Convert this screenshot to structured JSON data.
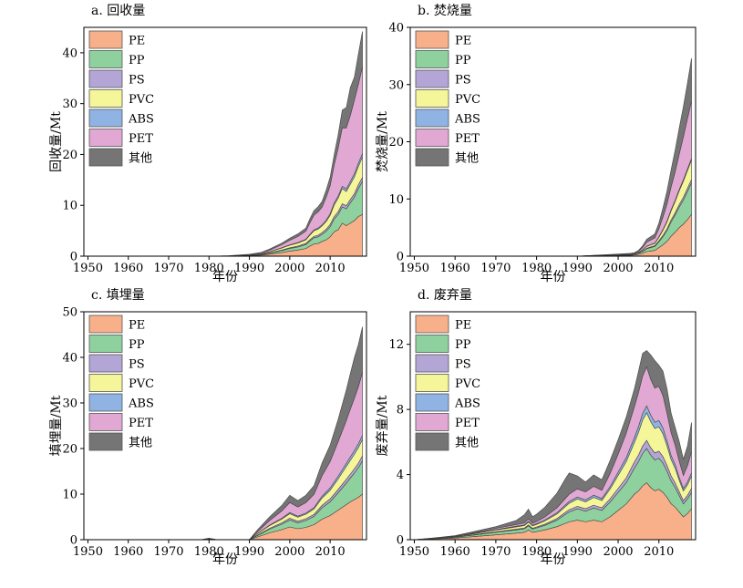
{
  "chart_data": [
    {
      "type": "area",
      "title": "a. 回收量",
      "xlabel": "年份",
      "ylabel": "回收量/Mt",
      "xlim": [
        1949,
        2019
      ],
      "ylim": [
        0,
        45
      ],
      "xticks": [
        1950,
        1960,
        1970,
        1980,
        1990,
        2000,
        2010
      ],
      "yticks": [
        0,
        10,
        20,
        30,
        40
      ],
      "legend_position": "top-left",
      "x": [
        1950,
        1980,
        1985,
        1990,
        1993,
        1995,
        1998,
        2000,
        2002,
        2004,
        2005,
        2006,
        2007,
        2008,
        2009,
        2010,
        2011,
        2012,
        2013,
        2014,
        2015,
        2016,
        2017,
        2018
      ],
      "series": [
        {
          "name": "PE",
          "color": "#f7b08a",
          "values": [
            0,
            0,
            0.02,
            0.1,
            0.2,
            0.4,
            0.7,
            1.0,
            1.2,
            1.5,
            2.0,
            2.4,
            2.5,
            2.9,
            3.2,
            3.8,
            4.8,
            5.2,
            6.5,
            6.0,
            6.5,
            7.0,
            7.8,
            8.2
          ]
        },
        {
          "name": "PP",
          "color": "#8fd19e",
          "values": [
            0,
            0,
            0.01,
            0.05,
            0.1,
            0.2,
            0.4,
            0.5,
            0.6,
            0.8,
            1.0,
            1.2,
            1.3,
            1.4,
            1.7,
            2.0,
            2.5,
            3.0,
            3.2,
            3.3,
            4.0,
            4.6,
            5.5,
            6.5
          ]
        },
        {
          "name": "PS",
          "color": "#b3a6d6",
          "values": [
            0,
            0,
            0.01,
            0.02,
            0.04,
            0.06,
            0.1,
            0.15,
            0.18,
            0.22,
            0.25,
            0.3,
            0.32,
            0.35,
            0.4,
            0.45,
            0.5,
            0.55,
            0.6,
            0.62,
            0.65,
            0.7,
            0.75,
            0.8
          ]
        },
        {
          "name": "PVC",
          "color": "#f5f59a",
          "values": [
            0,
            0,
            0.01,
            0.05,
            0.1,
            0.2,
            0.4,
            0.5,
            0.6,
            0.7,
            0.9,
            1.1,
            1.2,
            1.3,
            1.5,
            1.8,
            2.3,
            2.7,
            3.0,
            2.8,
            3.0,
            3.3,
            3.6,
            4.0
          ]
        },
        {
          "name": "ABS",
          "color": "#8fb4e3",
          "values": [
            0,
            0,
            0,
            0.01,
            0.02,
            0.04,
            0.06,
            0.08,
            0.1,
            0.12,
            0.15,
            0.18,
            0.2,
            0.22,
            0.25,
            0.3,
            0.35,
            0.4,
            0.45,
            0.5,
            0.55,
            0.6,
            0.65,
            0.7
          ]
        },
        {
          "name": "PET",
          "color": "#e0a8d2",
          "values": [
            0,
            0,
            0.02,
            0.1,
            0.2,
            0.3,
            0.6,
            0.9,
            1.2,
            1.6,
            2.3,
            2.9,
            3.2,
            3.5,
            4.5,
            5.5,
            7.5,
            9.5,
            11.5,
            12.0,
            13.0,
            14.5,
            15.5,
            17.0
          ]
        },
        {
          "name": "其他",
          "color": "#757575",
          "values": [
            0,
            0,
            0.01,
            0.05,
            0.1,
            0.2,
            0.3,
            0.4,
            0.5,
            0.6,
            0.8,
            0.9,
            1.0,
            1.1,
            1.4,
            1.7,
            2.0,
            2.6,
            3.5,
            4.0,
            5.5,
            4.5,
            6.0,
            7.0
          ]
        }
      ]
    },
    {
      "type": "area",
      "title": "b. 焚烧量",
      "xlabel": "年份",
      "ylabel": "焚烧量/Mt",
      "xlim": [
        1949,
        2019
      ],
      "ylim": [
        0,
        40
      ],
      "xticks": [
        1950,
        1960,
        1970,
        1980,
        1990,
        2000,
        2010
      ],
      "yticks": [
        0,
        10,
        20,
        30,
        40
      ],
      "legend_position": "top-left",
      "x": [
        1950,
        1990,
        1995,
        2000,
        2003,
        2004,
        2005,
        2006,
        2007,
        2008,
        2009,
        2010,
        2011,
        2012,
        2013,
        2014,
        2015,
        2016,
        2017,
        2018
      ],
      "series": [
        {
          "name": "PE",
          "color": "#f7b08a",
          "values": [
            0,
            0,
            0.05,
            0.1,
            0.15,
            0.2,
            0.3,
            0.5,
            0.8,
            0.9,
            1.0,
            1.5,
            2.0,
            2.6,
            3.5,
            4.2,
            5.0,
            5.6,
            6.4,
            7.3
          ]
        },
        {
          "name": "PP",
          "color": "#8fd19e",
          "values": [
            0,
            0,
            0.03,
            0.06,
            0.08,
            0.1,
            0.2,
            0.3,
            0.5,
            0.6,
            0.7,
            1.0,
            1.4,
            1.9,
            2.5,
            3.0,
            3.6,
            4.2,
            4.9,
            5.5
          ]
        },
        {
          "name": "PS",
          "color": "#b3a6d6",
          "values": [
            0,
            0,
            0.01,
            0.02,
            0.02,
            0.03,
            0.05,
            0.08,
            0.1,
            0.12,
            0.14,
            0.2,
            0.25,
            0.3,
            0.35,
            0.4,
            0.45,
            0.5,
            0.55,
            0.6
          ]
        },
        {
          "name": "PVC",
          "color": "#f5f59a",
          "values": [
            0,
            0,
            0.02,
            0.04,
            0.05,
            0.06,
            0.1,
            0.2,
            0.3,
            0.35,
            0.4,
            0.6,
            0.9,
            1.2,
            1.6,
            2.0,
            2.4,
            2.8,
            3.1,
            3.4
          ]
        },
        {
          "name": "ABS",
          "color": "#8fb4e3",
          "values": [
            0,
            0,
            0.005,
            0.01,
            0.01,
            0.01,
            0.02,
            0.03,
            0.05,
            0.06,
            0.07,
            0.1,
            0.12,
            0.15,
            0.18,
            0.2,
            0.22,
            0.25,
            0.28,
            0.3
          ]
        },
        {
          "name": "PET",
          "color": "#e0a8d2",
          "values": [
            0,
            0,
            0.04,
            0.08,
            0.1,
            0.12,
            0.2,
            0.4,
            0.7,
            0.8,
            0.9,
            1.4,
            2.2,
            3.0,
            4.0,
            5.0,
            6.2,
            7.5,
            8.8,
            10.0
          ]
        },
        {
          "name": "其他",
          "color": "#757575",
          "values": [
            0,
            0,
            0.03,
            0.06,
            0.08,
            0.1,
            0.15,
            0.3,
            0.5,
            0.6,
            0.7,
            1.0,
            1.6,
            2.3,
            3.0,
            3.8,
            4.6,
            5.3,
            6.2,
            7.5
          ]
        }
      ]
    },
    {
      "type": "area",
      "title": "c. 填埋量",
      "xlabel": "年份",
      "ylabel": "填埋量/Mt",
      "xlim": [
        1949,
        2019
      ],
      "ylim": [
        0,
        50
      ],
      "xticks": [
        1950,
        1960,
        1970,
        1980,
        1990,
        2000,
        2010
      ],
      "yticks": [
        0,
        10,
        20,
        30,
        40,
        50
      ],
      "legend_position": "top-left",
      "x": [
        1950,
        1978,
        1980,
        1982,
        1990,
        1992,
        1995,
        1998,
        2000,
        2002,
        2004,
        2006,
        2008,
        2010,
        2012,
        2014,
        2015,
        2016,
        2017,
        2018
      ],
      "series": [
        {
          "name": "PE",
          "color": "#f7b08a",
          "values": [
            0,
            0,
            0.15,
            0,
            0,
            0.6,
            1.5,
            2.2,
            2.8,
            2.4,
            2.7,
            3.3,
            4.5,
            5.3,
            6.5,
            7.7,
            8.3,
            8.8,
            9.3,
            10.0
          ]
        },
        {
          "name": "PP",
          "color": "#8fd19e",
          "values": [
            0,
            0,
            0.05,
            0,
            0,
            0.3,
            0.8,
            1.2,
            1.5,
            1.3,
            1.5,
            1.8,
            2.5,
            3.0,
            3.8,
            4.7,
            5.2,
            5.8,
            6.5,
            7.3
          ]
        },
        {
          "name": "PS",
          "color": "#b3a6d6",
          "values": [
            0,
            0,
            0.01,
            0,
            0,
            0.1,
            0.2,
            0.3,
            0.4,
            0.35,
            0.4,
            0.45,
            0.55,
            0.65,
            0.75,
            0.85,
            0.9,
            0.95,
            1.0,
            1.1
          ]
        },
        {
          "name": "PVC",
          "color": "#f5f59a",
          "values": [
            0,
            0,
            0.03,
            0,
            0,
            0.3,
            0.6,
            0.8,
            1.0,
            0.9,
            1.0,
            1.2,
            1.6,
            1.9,
            2.3,
            2.8,
            3.0,
            3.2,
            3.4,
            3.6
          ]
        },
        {
          "name": "ABS",
          "color": "#8fb4e3",
          "values": [
            0,
            0,
            0.01,
            0,
            0,
            0.05,
            0.1,
            0.2,
            0.25,
            0.22,
            0.25,
            0.3,
            0.4,
            0.5,
            0.6,
            0.7,
            0.75,
            0.8,
            0.85,
            0.9
          ]
        },
        {
          "name": "PET",
          "color": "#e0a8d2",
          "values": [
            0,
            0,
            0.04,
            0,
            0,
            0.4,
            1.0,
            1.6,
            2.2,
            2.0,
            2.3,
            2.9,
            4.5,
            5.8,
            7.6,
            9.4,
            10.5,
            11.5,
            12.5,
            13.8
          ]
        },
        {
          "name": "其他",
          "color": "#757575",
          "values": [
            0,
            0,
            0.05,
            0,
            0,
            0.4,
            0.8,
            1.2,
            1.6,
            1.4,
            1.6,
            1.9,
            2.8,
            3.6,
            4.9,
            6.7,
            7.8,
            8.9,
            9.3,
            10.0
          ]
        }
      ]
    },
    {
      "type": "area",
      "title": "d. 废弃量",
      "xlabel": "年份",
      "ylabel": "废弃量/Mt",
      "xlim": [
        1949,
        2019
      ],
      "ylim": [
        0,
        14
      ],
      "xticks": [
        1950,
        1960,
        1970,
        1980,
        1990,
        2000,
        2010
      ],
      "yticks": [
        0,
        4,
        8,
        12
      ],
      "legend_position": "top-left",
      "x": [
        1950,
        1955,
        1960,
        1965,
        1970,
        1975,
        1977,
        1978,
        1979,
        1980,
        1982,
        1985,
        1987,
        1988,
        1990,
        1992,
        1994,
        1996,
        1998,
        2000,
        2002,
        2004,
        2005,
        2006,
        2007,
        2008,
        2009,
        2010,
        2011,
        2012,
        2013,
        2014,
        2015,
        2016,
        2017,
        2018
      ],
      "series": [
        {
          "name": "PE",
          "color": "#f7b08a",
          "values": [
            0,
            0.05,
            0.1,
            0.2,
            0.3,
            0.4,
            0.45,
            0.6,
            0.45,
            0.5,
            0.6,
            0.8,
            1.0,
            1.1,
            1.2,
            1.1,
            1.2,
            1.1,
            1.4,
            1.8,
            2.2,
            2.8,
            3.0,
            3.3,
            3.5,
            3.2,
            3.0,
            3.1,
            2.9,
            2.6,
            2.2,
            2.0,
            1.7,
            1.4,
            1.6,
            1.9
          ]
        },
        {
          "name": "PP",
          "color": "#8fd19e",
          "values": [
            0,
            0.02,
            0.05,
            0.1,
            0.15,
            0.2,
            0.22,
            0.25,
            0.2,
            0.22,
            0.28,
            0.4,
            0.55,
            0.6,
            0.7,
            0.65,
            0.75,
            0.7,
            0.9,
            1.1,
            1.3,
            1.6,
            1.8,
            2.0,
            2.1,
            2.0,
            1.9,
            1.9,
            1.8,
            1.6,
            1.4,
            1.2,
            1.0,
            0.8,
            0.9,
            1.0
          ]
        },
        {
          "name": "PS",
          "color": "#b3a6d6",
          "values": [
            0,
            0.01,
            0.01,
            0.02,
            0.04,
            0.05,
            0.05,
            0.06,
            0.05,
            0.06,
            0.07,
            0.1,
            0.12,
            0.14,
            0.15,
            0.15,
            0.17,
            0.16,
            0.2,
            0.25,
            0.3,
            0.38,
            0.4,
            0.45,
            0.5,
            0.45,
            0.43,
            0.44,
            0.4,
            0.36,
            0.32,
            0.28,
            0.24,
            0.2,
            0.22,
            0.25
          ]
        },
        {
          "name": "PVC",
          "color": "#f5f59a",
          "values": [
            0,
            0.01,
            0.03,
            0.06,
            0.1,
            0.14,
            0.15,
            0.17,
            0.15,
            0.16,
            0.2,
            0.28,
            0.35,
            0.4,
            0.45,
            0.42,
            0.48,
            0.45,
            0.6,
            0.8,
            1.0,
            1.2,
            1.4,
            1.6,
            1.7,
            1.6,
            1.5,
            1.5,
            1.4,
            1.2,
            1.0,
            0.9,
            0.7,
            0.6,
            0.65,
            0.75
          ]
        },
        {
          "name": "ABS",
          "color": "#8fb4e3",
          "values": [
            0,
            0.005,
            0.01,
            0.02,
            0.03,
            0.04,
            0.04,
            0.05,
            0.04,
            0.05,
            0.06,
            0.08,
            0.1,
            0.11,
            0.12,
            0.12,
            0.13,
            0.12,
            0.15,
            0.2,
            0.25,
            0.3,
            0.35,
            0.4,
            0.42,
            0.4,
            0.38,
            0.38,
            0.35,
            0.3,
            0.25,
            0.22,
            0.18,
            0.15,
            0.17,
            0.2
          ]
        },
        {
          "name": "PET",
          "color": "#e0a8d2",
          "values": [
            0,
            0.01,
            0.02,
            0.04,
            0.08,
            0.1,
            0.12,
            0.15,
            0.12,
            0.13,
            0.18,
            0.3,
            0.4,
            0.45,
            0.5,
            0.5,
            0.55,
            0.5,
            0.8,
            1.1,
            1.5,
            1.9,
            2.1,
            2.3,
            2.4,
            2.2,
            2.1,
            2.1,
            2.0,
            1.7,
            1.4,
            1.2,
            1.0,
            0.8,
            1.0,
            1.3
          ]
        },
        {
          "name": "其他",
          "color": "#757575",
          "values": [
            0,
            0.01,
            0.03,
            0.08,
            0.1,
            0.25,
            0.5,
            0.6,
            0.4,
            0.45,
            0.6,
            0.9,
            1.2,
            1.3,
            0.8,
            0.6,
            0.7,
            0.65,
            0.8,
            0.9,
            1.0,
            1.1,
            1.3,
            1.4,
            1.0,
            1.5,
            1.7,
            1.3,
            1.5,
            1.5,
            1.2,
            1.1,
            1.2,
            1.0,
            1.2,
            1.8
          ]
        }
      ]
    }
  ]
}
